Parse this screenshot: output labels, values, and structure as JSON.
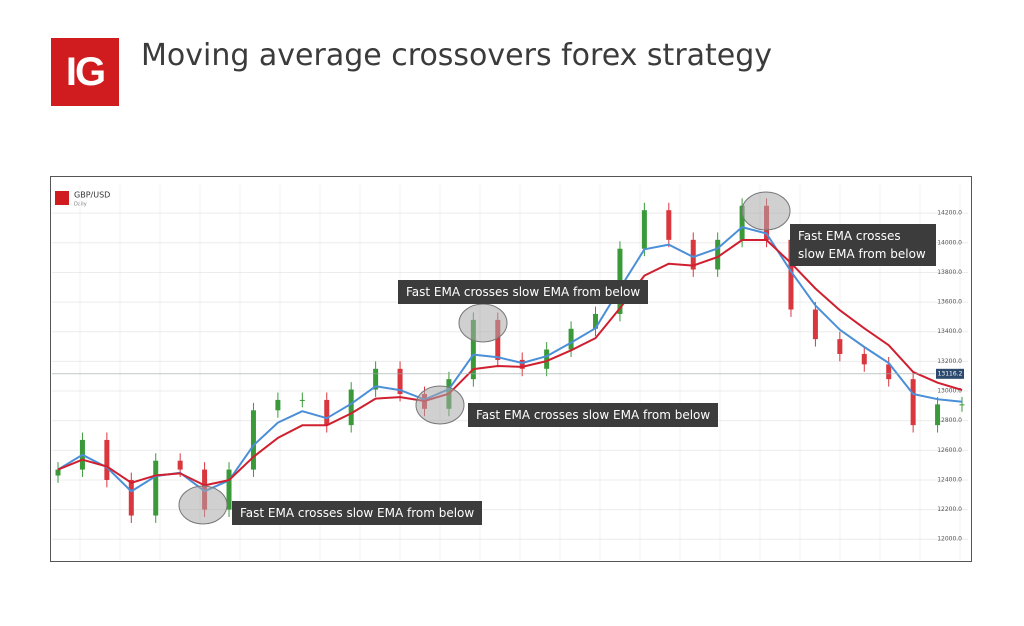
{
  "header": {
    "logo": "IG",
    "title": "Moving average crossovers forex strategy"
  },
  "chart_data": {
    "type": "candlestick",
    "symbol": "GBP/USD",
    "interval": "Daily",
    "open": [
      12430,
      12470,
      12670,
      12400,
      12160,
      12530,
      12470,
      12200,
      12470,
      12870,
      12940,
      12940,
      12770,
      13010,
      13150,
      12980,
      12880,
      13080,
      13480,
      13210,
      13150,
      13280,
      13420,
      13520,
      13960,
      14220,
      14020,
      13820,
      14020,
      14250,
      14020,
      13550,
      13350,
      13250,
      13180,
      13080,
      12770,
      12910
    ],
    "high": [
      12520,
      12720,
      12720,
      12450,
      12580,
      12580,
      12520,
      12520,
      12920,
      12990,
      12990,
      12990,
      13060,
      13200,
      13200,
      13030,
      13130,
      13530,
      13530,
      13260,
      13330,
      13470,
      13570,
      14010,
      14270,
      14270,
      14070,
      14070,
      14300,
      14300,
      14070,
      13600,
      13400,
      13300,
      13230,
      13130,
      12960,
      12960
    ],
    "low": [
      12380,
      12420,
      12350,
      12110,
      12110,
      12420,
      12150,
      12150,
      12420,
      12820,
      12890,
      12720,
      12720,
      12960,
      12930,
      12830,
      12830,
      13030,
      13160,
      13100,
      13100,
      13230,
      13370,
      13470,
      13910,
      13970,
      13770,
      13770,
      13970,
      13970,
      13500,
      13300,
      13200,
      13130,
      13030,
      12720,
      12720,
      12860
    ],
    "close": [
      12470,
      12670,
      12400,
      12160,
      12530,
      12470,
      12200,
      12470,
      12870,
      12940,
      12940,
      12770,
      13010,
      13150,
      12980,
      12880,
      13080,
      13480,
      13210,
      13150,
      13280,
      13420,
      13520,
      13960,
      14220,
      14020,
      13820,
      14020,
      14250,
      14020,
      13550,
      13350,
      13250,
      13180,
      13080,
      12770,
      12910,
      12910
    ],
    "up_color": "#3a9a3a",
    "down_color": "#d9363e",
    "series": [
      {
        "color": "#4a8fd8",
        "values": [
          12470,
          12570,
          12485,
          12323,
          12426,
          12448,
          12324,
          12397,
          12634,
          12787,
          12864,
          12817,
          12914,
          13032,
          13006,
          12943,
          13012,
          13246,
          13228,
          13189,
          13235,
          13327,
          13424,
          13692,
          13956,
          13988,
          13904,
          13962,
          14106,
          14063,
          13807,
          13578,
          13414,
          13297,
          13189,
          12980,
          12945,
          12928
        ]
      },
      {
        "color": "#d02030",
        "values": [
          12470,
          12537,
          12491,
          12381,
          12431,
          12444,
          12363,
          12399,
          12556,
          12684,
          12769,
          12769,
          12849,
          12949,
          12959,
          12933,
          12982,
          13148,
          13169,
          13163,
          13202,
          13275,
          13357,
          13558,
          13779,
          13859,
          13846,
          13904,
          14019,
          14019,
          13863,
          13692,
          13545,
          13423,
          13309,
          13129,
          13056,
          13007
        ]
      }
    ],
    "ylim": [
      11860,
      14390
    ],
    "yticks": [
      {
        "value": 12000,
        "label": "12000.0"
      },
      {
        "value": 12200,
        "label": "12200.0"
      },
      {
        "value": 12400,
        "label": "12400.0"
      },
      {
        "value": 12600,
        "label": "12600.0"
      },
      {
        "value": 12800,
        "label": "12800.0"
      },
      {
        "value": 13000,
        "label": "13000.0"
      },
      {
        "value": 13200,
        "label": "13200.0"
      },
      {
        "value": 13400,
        "label": "13400.0"
      },
      {
        "value": 13600,
        "label": "13600.0"
      },
      {
        "value": 13800,
        "label": "13800.0"
      },
      {
        "value": 14000,
        "label": "14000.0"
      },
      {
        "value": 14200,
        "label": "14200.0"
      }
    ],
    "grid": true,
    "last_price": 13116.2,
    "annotations": [
      "Fast EMA crosses slow EMA from below",
      "Fast EMA crosses slow EMA from below",
      "Fast EMA crosses slow EMA from below",
      "Fast EMA crosses slow EMA from below"
    ]
  }
}
